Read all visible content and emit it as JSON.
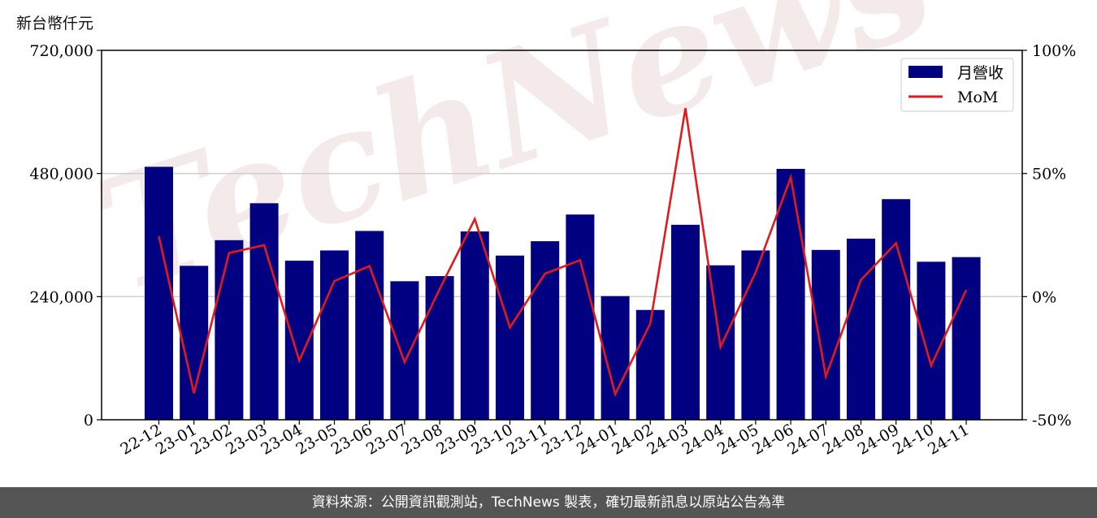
{
  "chart_data": {
    "type": "bar",
    "y_unit_label": "新台幣仟元",
    "categories": [
      "22-12",
      "23-01",
      "23-02",
      "23-03",
      "23-04",
      "23-05",
      "23-06",
      "23-07",
      "23-08",
      "23-09",
      "23-10",
      "23-11",
      "23-12",
      "24-01",
      "24-02",
      "24-03",
      "24-04",
      "24-05",
      "24-06",
      "24-07",
      "24-08",
      "24-09",
      "24-10",
      "24-11"
    ],
    "series": [
      {
        "name": "月營收",
        "type": "bar",
        "axis": "left",
        "color": "#000080",
        "values": [
          493000,
          300000,
          350000,
          422000,
          310000,
          330000,
          368000,
          270000,
          280000,
          367000,
          320000,
          348000,
          400000,
          241000,
          214000,
          380000,
          301000,
          330000,
          489000,
          331000,
          353000,
          430000,
          308000,
          317000
        ]
      },
      {
        "name": "MoM",
        "type": "line",
        "axis": "right",
        "color": "#e31a1c",
        "values": [
          24.5,
          -39.2,
          17.7,
          20.9,
          -26.0,
          6.3,
          12.4,
          -26.6,
          3.1,
          31.5,
          -12.5,
          9.3,
          14.8,
          -39.6,
          -10.9,
          76.5,
          -20.4,
          9.8,
          48.4,
          -32.4,
          6.8,
          21.7,
          -28.0,
          2.7
        ]
      }
    ],
    "ylim_left": [
      0,
      720000
    ],
    "yticks_left": [
      0,
      240000,
      480000,
      720000
    ],
    "ytick_labels_left": [
      "0",
      "240,000",
      "480,000",
      "720,000"
    ],
    "ylim_right": [
      -50,
      100
    ],
    "yticks_right": [
      -50,
      0,
      50,
      100
    ],
    "ytick_labels_right": [
      "-50%",
      "0%",
      "50%",
      "100%"
    ],
    "grid": "horizontal",
    "legend_position": "top-right"
  },
  "watermark": "TechNews",
  "footer": {
    "source_text": "資料來源：公開資訊觀測站，TechNews 製表，確切最新訊息以原站公告為準"
  }
}
